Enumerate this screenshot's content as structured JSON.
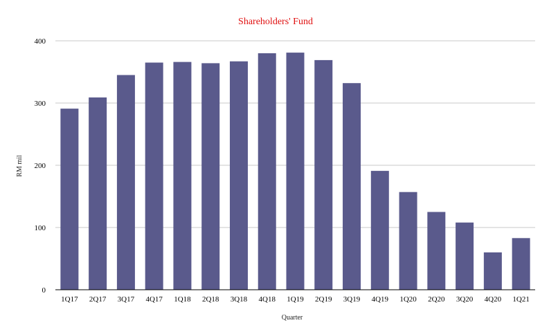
{
  "chart_data": {
    "type": "bar",
    "title": "Shareholders' Fund",
    "xlabel": "Quarter",
    "ylabel": "RM mil",
    "categories": [
      "1Q17",
      "2Q17",
      "3Q17",
      "4Q17",
      "1Q18",
      "2Q18",
      "3Q18",
      "4Q18",
      "1Q19",
      "2Q19",
      "3Q19",
      "4Q19",
      "1Q20",
      "2Q20",
      "3Q20",
      "4Q20",
      "1Q21"
    ],
    "values": [
      291,
      309,
      345,
      365,
      366,
      364,
      367,
      380,
      381,
      369,
      332,
      191,
      157,
      125,
      108,
      60,
      83
    ],
    "ylim": [
      0,
      400
    ],
    "yticks": [
      0,
      100,
      200,
      300,
      400
    ],
    "grid": true,
    "legend": "none"
  },
  "colors": {
    "bar": "#5a5a8c",
    "title": "#e01010",
    "grid": "#c8c8c8",
    "axis": "#000000"
  }
}
